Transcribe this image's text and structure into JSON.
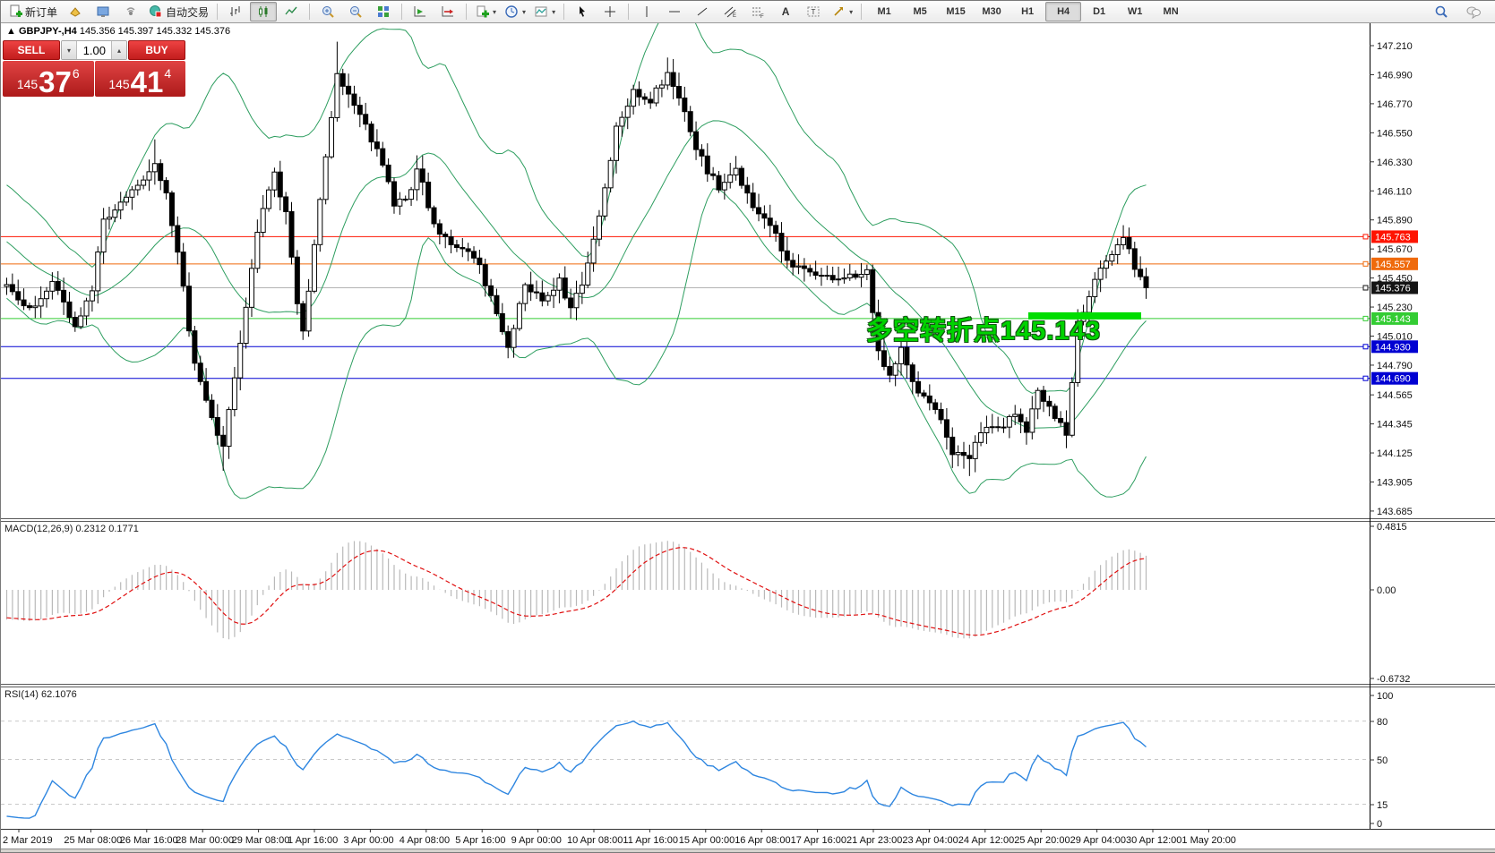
{
  "toolbar": {
    "new_order_label": "新订单",
    "autotrading_label": "自动交易",
    "timeframes": [
      "M1",
      "M5",
      "M15",
      "M30",
      "H1",
      "H4",
      "D1",
      "W1",
      "MN"
    ],
    "active_timeframe": "H4",
    "icons": [
      "new-order-icon",
      "metaeditor-icon",
      "market-watch-icon",
      "signals-icon",
      "autotrading-icon",
      "bar-chart-icon",
      "candlestick-icon",
      "line-chart-icon",
      "zoom-in-icon",
      "zoom-out-icon",
      "tile-windows-icon",
      "auto-scroll-icon",
      "chart-shift-icon",
      "indicators-icon",
      "periods-icon",
      "template-icon",
      "cursor-icon",
      "crosshair-icon",
      "vertical-line-icon",
      "horizontal-line-icon",
      "trendline-icon",
      "channel-icon",
      "fibonacci-icon",
      "text-icon",
      "label-icon",
      "arrows-icon",
      "search-icon",
      "chat-icon"
    ]
  },
  "symbol_bar": {
    "collapse_marker": "▲",
    "symbol": "GBPJPY-,H4",
    "open": "145.356",
    "high": "145.397",
    "low": "145.332",
    "close": "145.376"
  },
  "trade_panel": {
    "sell_label": "SELL",
    "buy_label": "BUY",
    "volume": "1.00",
    "spinner_down": "▾",
    "spinner_up": "▴",
    "sell_price": {
      "prefix": "145",
      "big": "37",
      "sup": "6"
    },
    "buy_price": {
      "prefix": "145",
      "big": "41",
      "sup": "4"
    }
  },
  "chart_data": {
    "type": "candlestick",
    "symbol": "GBPJPY-",
    "timeframe": "H4",
    "ohlc_current": {
      "open": 145.356,
      "high": 145.397,
      "low": 145.332,
      "close": 145.376
    },
    "y_axis": {
      "top_value": 147.21,
      "ticks": [
        "147.210",
        "146.990",
        "146.770",
        "146.550",
        "146.330",
        "146.110",
        "145.890",
        "145.670",
        "145.450",
        "145.230",
        "145.010",
        "144.790",
        "144.565",
        "144.345",
        "144.125",
        "143.905",
        "143.685"
      ]
    },
    "x_axis": {
      "labels": [
        "2 Mar 2019",
        "25 Mar 08:00",
        "26 Mar 16:00",
        "28 Mar 00:00",
        "29 Mar 08:00",
        "1 Apr 16:00",
        "3 Apr 00:00",
        "4 Apr 08:00",
        "5 Apr 16:00",
        "9 Apr 00:00",
        "10 Apr 08:00",
        "11 Apr 16:00",
        "15 Apr 00:00",
        "16 Apr 08:00",
        "17 Apr 16:00",
        "21 Apr 23:00",
        "23 Apr 04:00",
        "24 Apr 12:00",
        "25 Apr 20:00",
        "29 Apr 04:00",
        "30 Apr 12:00",
        "1 May 20:00"
      ]
    },
    "horizontal_lines": [
      {
        "price": 145.763,
        "label": "145.763",
        "color": "#fe1400"
      },
      {
        "price": 145.557,
        "label": "145.557",
        "color": "#ef6a0c"
      },
      {
        "price": 145.143,
        "label": "145.143",
        "color": "#33cc33"
      },
      {
        "price": 144.93,
        "label": "144.930",
        "color": "#0000d2"
      },
      {
        "price": 144.69,
        "label": "144.690",
        "color": "#0000d2"
      }
    ],
    "current_price": {
      "value": 145.376,
      "label": "145.376",
      "line_color": "#b4b4b4",
      "label_bg": "#141414"
    },
    "annotation": {
      "text": "多空转折点145.143",
      "color": "#00d300"
    },
    "highlight_segment": {
      "price": 145.17,
      "color": "#00dd00"
    },
    "candles_visible": 201,
    "price_waypoints": [
      [
        0,
        145.4
      ],
      [
        4,
        145.22
      ],
      [
        8,
        145.42
      ],
      [
        12,
        145.08
      ],
      [
        15,
        145.35
      ],
      [
        17,
        145.9
      ],
      [
        20,
        146.02
      ],
      [
        23,
        146.15
      ],
      [
        26,
        146.32
      ],
      [
        28,
        146.1
      ],
      [
        30,
        145.65
      ],
      [
        33,
        144.8
      ],
      [
        36,
        144.4
      ],
      [
        38,
        144.18
      ],
      [
        41,
        144.95
      ],
      [
        44,
        145.8
      ],
      [
        47,
        146.25
      ],
      [
        49,
        145.95
      ],
      [
        51,
        145.25
      ],
      [
        52,
        145.05
      ],
      [
        55,
        146.05
      ],
      [
        58,
        147.0
      ],
      [
        60,
        146.85
      ],
      [
        63,
        146.62
      ],
      [
        66,
        146.3
      ],
      [
        68,
        146.0
      ],
      [
        71,
        146.12
      ],
      [
        72,
        146.28
      ],
      [
        75,
        145.86
      ],
      [
        79,
        145.68
      ],
      [
        83,
        145.55
      ],
      [
        86,
        145.18
      ],
      [
        88,
        144.93
      ],
      [
        91,
        145.4
      ],
      [
        94,
        145.28
      ],
      [
        97,
        145.45
      ],
      [
        99,
        145.22
      ],
      [
        101,
        145.4
      ],
      [
        104,
        145.92
      ],
      [
        107,
        146.6
      ],
      [
        110,
        146.88
      ],
      [
        113,
        146.78
      ],
      [
        116,
        147.0
      ],
      [
        118,
        146.82
      ],
      [
        121,
        146.42
      ],
      [
        125,
        146.12
      ],
      [
        128,
        146.28
      ],
      [
        131,
        145.98
      ],
      [
        134,
        145.85
      ],
      [
        137,
        145.58
      ],
      [
        141,
        145.5
      ],
      [
        145,
        145.44
      ],
      [
        149,
        145.46
      ],
      [
        151,
        145.52
      ],
      [
        153,
        144.9
      ],
      [
        155,
        144.72
      ],
      [
        157,
        144.92
      ],
      [
        160,
        144.58
      ],
      [
        163,
        144.46
      ],
      [
        166,
        144.12
      ],
      [
        169,
        144.08
      ],
      [
        171,
        144.28
      ],
      [
        174,
        144.32
      ],
      [
        177,
        144.42
      ],
      [
        179,
        144.28
      ],
      [
        181,
        144.6
      ],
      [
        184,
        144.38
      ],
      [
        186,
        144.26
      ],
      [
        188,
        145.12
      ],
      [
        191,
        145.44
      ],
      [
        194,
        145.62
      ],
      [
        196,
        145.76
      ],
      [
        198,
        145.52
      ],
      [
        200,
        145.376
      ]
    ],
    "wick_overrides": [
      [
        26,
        "h",
        146.5
      ],
      [
        38,
        "l",
        143.99
      ],
      [
        58,
        "h",
        147.24
      ],
      [
        116,
        "h",
        147.12
      ],
      [
        169,
        "l",
        143.95
      ],
      [
        196,
        "h",
        145.85
      ]
    ],
    "indicators": {
      "bollinger": {
        "period": 20,
        "deviation": 2,
        "color": "#2e9e60"
      },
      "macd": {
        "name": "MACD(12,26,9)",
        "main_value": "0.2312",
        "signal_value": "0.1771",
        "axis_labels": [
          "0.4815",
          "0.00",
          "-0.6732"
        ],
        "histogram_color": "#b9b9b9",
        "signal_color": "#e01010"
      },
      "rsi": {
        "name": "RSI(14)",
        "value": "62.1076",
        "axis_labels": [
          "100",
          "80",
          "50",
          "15",
          "0"
        ],
        "levels": [
          80,
          50,
          15
        ],
        "color": "#2e86e0"
      }
    }
  }
}
